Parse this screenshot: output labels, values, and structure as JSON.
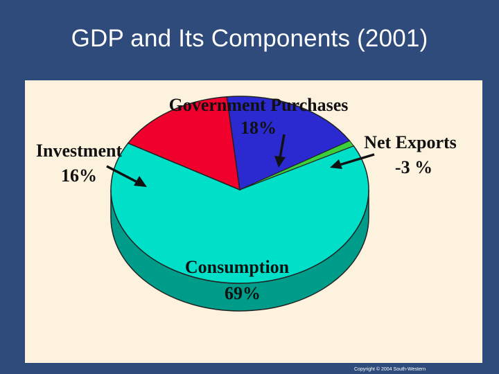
{
  "slide": {
    "title": "GDP and Its Components (2001)",
    "copyright": "Copyright © 2004 South-Western"
  },
  "chart_data": {
    "type": "pie",
    "title": "GDP and Its Components (2001)",
    "slices": [
      {
        "label": "Consumption",
        "value": 69,
        "display": "69%",
        "color": "#00e0c8",
        "side_color": "#009c8a"
      },
      {
        "label": "Investment",
        "value": 16,
        "display": "16%",
        "color": "#f0002c",
        "side_color": "#a8001e"
      },
      {
        "label": "Government Purchases",
        "value": 18,
        "display": "18%",
        "color": "#2a2ad0",
        "side_color": "#1a1a8a"
      },
      {
        "label": "Net Exports",
        "value": -3,
        "display": "-3 %",
        "color": "#3ccf3c",
        "side_color": "#248a24"
      }
    ],
    "style": "3d",
    "legend": "none"
  }
}
